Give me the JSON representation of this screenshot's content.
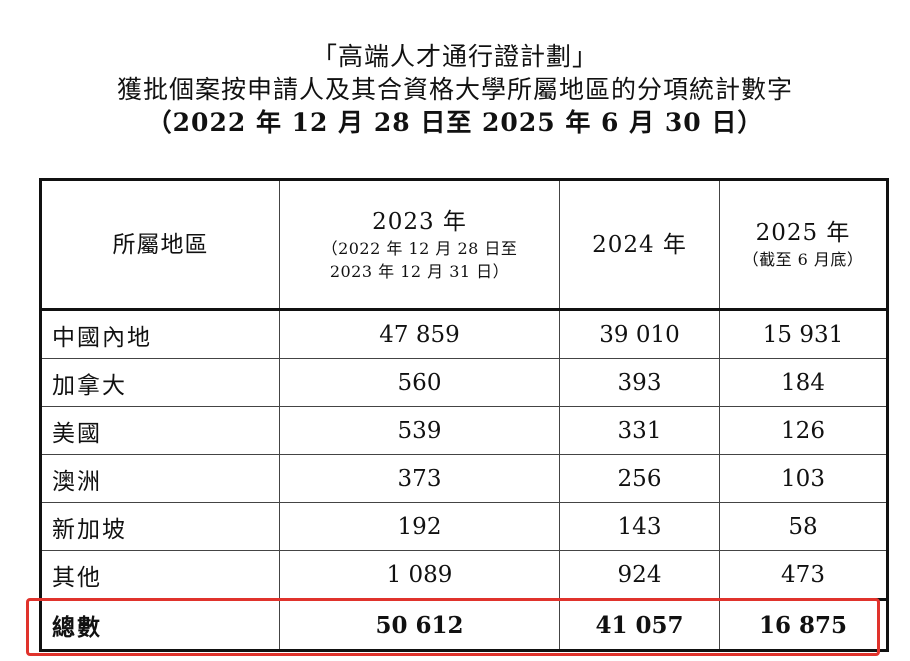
{
  "title": {
    "line1": "「高端人才通行證計劃」",
    "line2": "獲批個案按申請人及其合資格大學所屬地區的分項統計數字",
    "line3": "（2022 年 12 月 28 日至 2025 年 6 月 30 日）"
  },
  "table": {
    "header": {
      "region": "所屬地區",
      "y2023": "2023 年",
      "y2023_note_1": "（2022 年 12 月 28 日至",
      "y2023_note_2": "2023 年 12 月 31 日）",
      "y2024": "2024 年",
      "y2025": "2025 年",
      "y2025_note": "（截至 6 月底）"
    },
    "rows": [
      {
        "region": "中國內地",
        "y2023": "47 859",
        "y2024": "39 010",
        "y2025": "15 931"
      },
      {
        "region": "加拿大",
        "y2023": "560",
        "y2024": "393",
        "y2025": "184"
      },
      {
        "region": "美國",
        "y2023": "539",
        "y2024": "331",
        "y2025": "126"
      },
      {
        "region": "澳洲",
        "y2023": "373",
        "y2024": "256",
        "y2025": "103"
      },
      {
        "region": "新加坡",
        "y2023": "192",
        "y2024": "143",
        "y2025": "58"
      },
      {
        "region": "其他",
        "y2023": "1 089",
        "y2024": "924",
        "y2025": "473"
      }
    ],
    "total": {
      "label": "總數",
      "y2023": "50 612",
      "y2024": "41 057",
      "y2025": "16 875"
    }
  },
  "colors": {
    "highlight": "#e0332c",
    "border": "#111111",
    "text": "#111111"
  }
}
